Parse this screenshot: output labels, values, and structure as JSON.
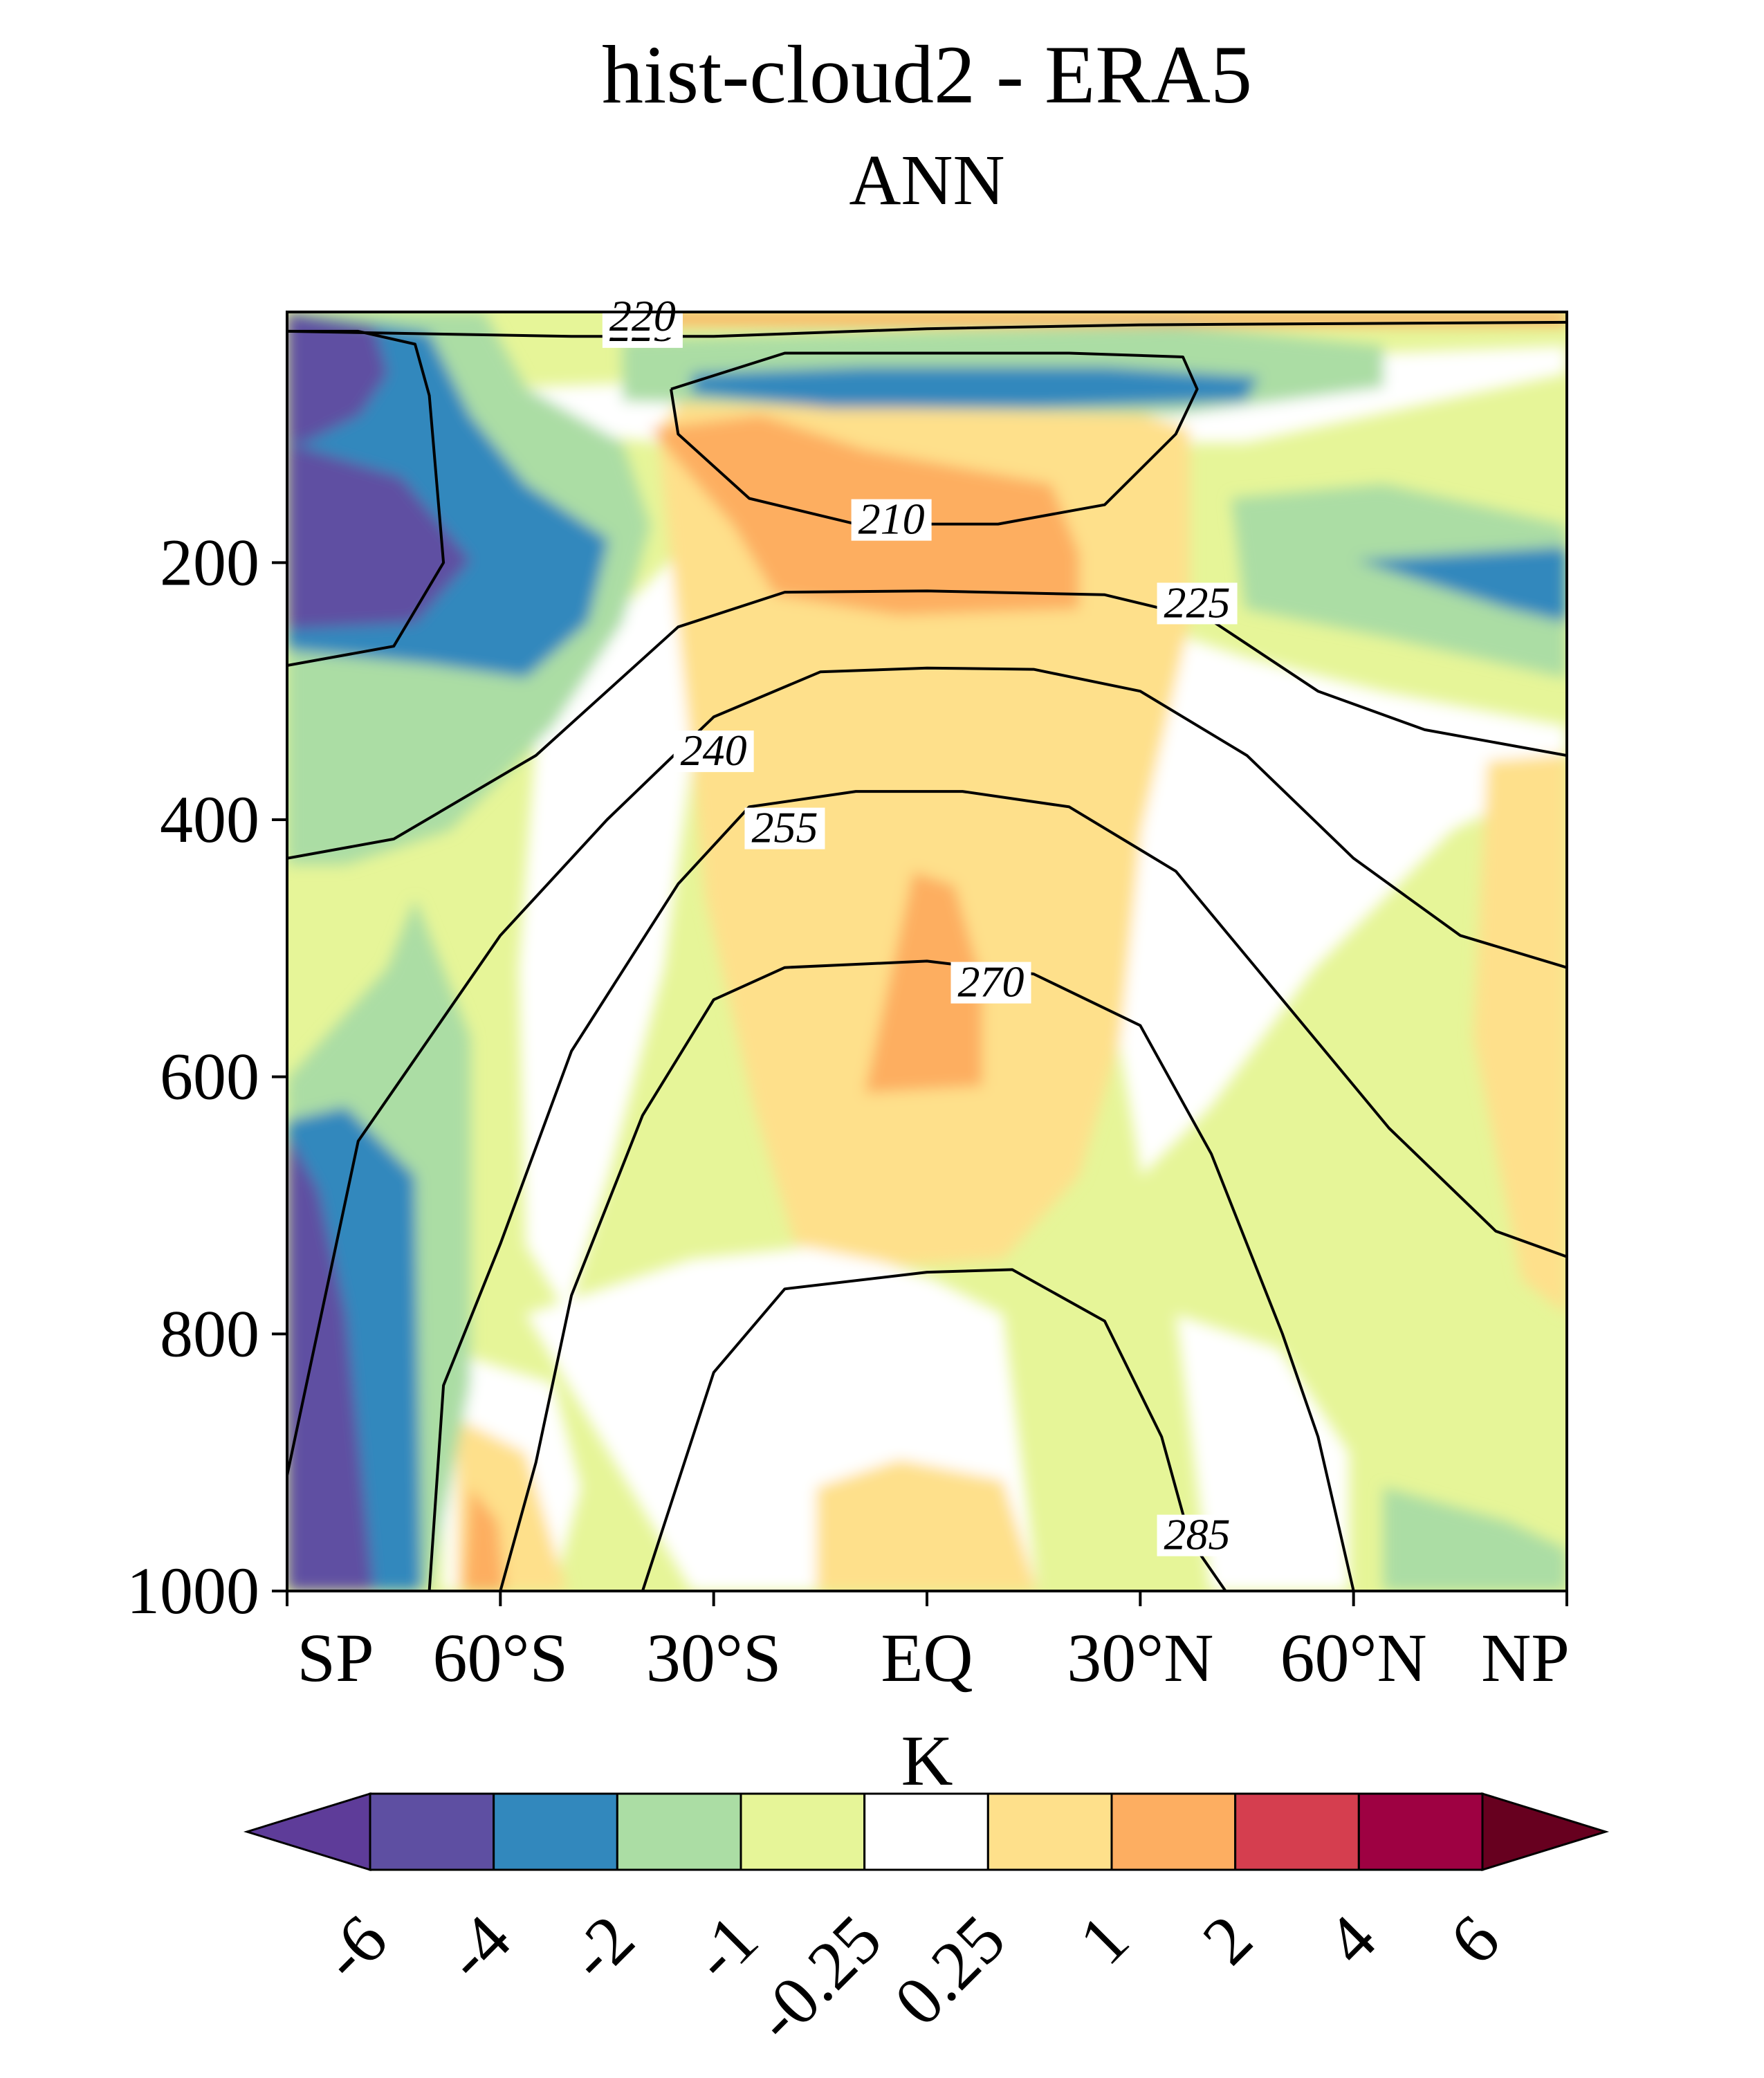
{
  "chart_data": {
    "type": "heatmap",
    "title": "hist-cloud2 - ERA5",
    "subtitle": "ANN",
    "xlabel": "",
    "ylabel": "",
    "x_ticks": [
      {
        "label": "SP",
        "value": -90
      },
      {
        "label": "60°S",
        "value": -60
      },
      {
        "label": "30°S",
        "value": -30
      },
      {
        "label": "EQ",
        "value": 0
      },
      {
        "label": "30°N",
        "value": 30
      },
      {
        "label": "60°N",
        "value": 60
      },
      {
        "label": "NP",
        "value": 90
      }
    ],
    "xlim": [
      -90,
      90
    ],
    "y_ticks": [
      200,
      400,
      600,
      800,
      1000
    ],
    "ylim": [
      1000,
      5
    ],
    "colorbar": {
      "label": "K",
      "levels": [
        "-6",
        "-4",
        "-2",
        "-1",
        "-0.25",
        "0.25",
        "1",
        "2",
        "4",
        "6"
      ],
      "colors": [
        "#5e3c99",
        "#5e4fa2",
        "#3288bd",
        "#abdda4",
        "#e6f598",
        "#ffffff",
        "#fee08b",
        "#fdae61",
        "#d53e4f",
        "#9e0142",
        "#67001f"
      ]
    },
    "contour_labels": [
      {
        "label": "210",
        "lat": -5,
        "p": 170
      },
      {
        "label": "225",
        "lat": 38,
        "p": 235
      },
      {
        "label": "225",
        "lat": -40,
        "p": 20
      },
      {
        "label": "220",
        "lat": -40,
        "p": 12
      },
      {
        "label": "240",
        "lat": -30,
        "p": 350
      },
      {
        "label": "255",
        "lat": -20,
        "p": 410
      },
      {
        "label": "270",
        "lat": 9,
        "p": 530
      },
      {
        "label": "285",
        "lat": 38,
        "p": 960
      }
    ],
    "contour_lines": [
      {
        "level": 210,
        "points": [
          [
            -36,
            65
          ],
          [
            -35,
            100
          ],
          [
            -25,
            150
          ],
          [
            -10,
            170
          ],
          [
            10,
            170
          ],
          [
            25,
            155
          ],
          [
            35,
            100
          ],
          [
            38,
            65
          ],
          [
            36,
            40
          ],
          [
            20,
            37
          ],
          [
            0,
            37
          ],
          [
            -20,
            37
          ],
          [
            -36,
            65
          ]
        ]
      },
      {
        "level": 225,
        "points": [
          [
            -90,
            20
          ],
          [
            -70,
            22
          ],
          [
            -50,
            24
          ],
          [
            -30,
            24
          ],
          [
            0,
            18
          ],
          [
            30,
            15
          ],
          [
            60,
            14
          ],
          [
            90,
            13
          ]
        ]
      },
      {
        "level": 225,
        "points": [
          [
            -90,
            280
          ],
          [
            -75,
            265
          ],
          [
            -68,
            200
          ],
          [
            -70,
            70
          ],
          [
            -72,
            30
          ],
          [
            -80,
            20
          ],
          [
            -90,
            20
          ]
        ]
      },
      {
        "level": 225,
        "points": [
          [
            -90,
            430
          ],
          [
            -75,
            415
          ],
          [
            -55,
            350
          ],
          [
            -35,
            250
          ],
          [
            -20,
            223
          ],
          [
            0,
            222
          ],
          [
            25,
            225
          ],
          [
            40,
            245
          ],
          [
            55,
            300
          ],
          [
            70,
            330
          ],
          [
            90,
            350
          ]
        ]
      },
      {
        "level": 240,
        "points": [
          [
            -90,
            910
          ],
          [
            -80,
            650
          ],
          [
            -75,
            610
          ],
          [
            -60,
            490
          ],
          [
            -45,
            400
          ],
          [
            -30,
            320
          ],
          [
            -15,
            285
          ],
          [
            0,
            282
          ],
          [
            15,
            283
          ],
          [
            30,
            300
          ],
          [
            45,
            350
          ],
          [
            60,
            430
          ],
          [
            75,
            490
          ],
          [
            90,
            515
          ]
        ]
      },
      {
        "level": 255,
        "points": [
          [
            -70,
            1000
          ],
          [
            -68,
            840
          ],
          [
            -60,
            730
          ],
          [
            -50,
            580
          ],
          [
            -35,
            450
          ],
          [
            -25,
            390
          ],
          [
            -10,
            378
          ],
          [
            5,
            378
          ],
          [
            20,
            390
          ],
          [
            35,
            440
          ],
          [
            50,
            540
          ],
          [
            65,
            640
          ],
          [
            80,
            720
          ],
          [
            90,
            740
          ]
        ]
      },
      {
        "level": 270,
        "points": [
          [
            -60,
            1000
          ],
          [
            -55,
            900
          ],
          [
            -50,
            770
          ],
          [
            -40,
            630
          ],
          [
            -30,
            540
          ],
          [
            -20,
            515
          ],
          [
            0,
            510
          ],
          [
            15,
            520
          ],
          [
            30,
            560
          ],
          [
            40,
            660
          ],
          [
            50,
            800
          ],
          [
            55,
            880
          ],
          [
            60,
            1000
          ]
        ]
      },
      {
        "level": 285,
        "points": [
          [
            -40,
            1000
          ],
          [
            -30,
            830
          ],
          [
            -20,
            765
          ],
          [
            0,
            752
          ],
          [
            12,
            750
          ],
          [
            25,
            790
          ],
          [
            33,
            880
          ],
          [
            35,
            920
          ],
          [
            37,
            960
          ],
          [
            42,
            1000
          ]
        ]
      }
    ]
  }
}
